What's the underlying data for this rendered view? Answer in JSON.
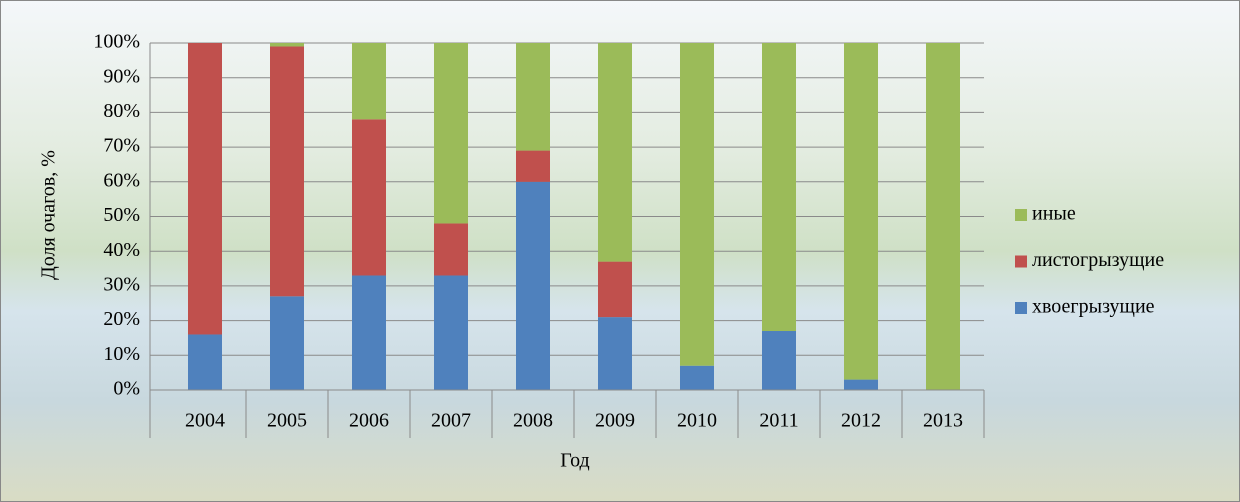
{
  "chart_data": {
    "type": "stacked_bar",
    "categories": [
      "2004",
      "2005",
      "2006",
      "2007",
      "2008",
      "2009",
      "2010",
      "2011",
      "2012",
      "2013"
    ],
    "series": [
      {
        "name": "иные",
        "color": "#9bbb59",
        "values": [
          0,
          1,
          22,
          52,
          31,
          63,
          93,
          83,
          97,
          100
        ]
      },
      {
        "name": "листогрызущие",
        "color": "#c0504d",
        "values": [
          84,
          72,
          45,
          15,
          9,
          16,
          0,
          0,
          0,
          0
        ]
      },
      {
        "name": "хвоегрызущие",
        "color": "#4f81bd",
        "values": [
          16,
          27,
          33,
          33,
          60,
          21,
          7,
          17,
          3,
          0
        ]
      }
    ],
    "ylim": [
      0,
      100
    ],
    "yticks": [
      {
        "value": 0,
        "label": "0%"
      },
      {
        "value": 10,
        "label": "10%"
      },
      {
        "value": 20,
        "label": "20%"
      },
      {
        "value": 30,
        "label": "30%"
      },
      {
        "value": 40,
        "label": "40%"
      },
      {
        "value": 50,
        "label": "50%"
      },
      {
        "value": 60,
        "label": "60%"
      },
      {
        "value": 70,
        "label": "70%"
      },
      {
        "value": 80,
        "label": "80%"
      },
      {
        "value": 90,
        "label": "90%"
      },
      {
        "value": 100,
        "label": "100%"
      }
    ],
    "xlabel": "Год",
    "ylabel": "Доля очагов, %",
    "grid": true,
    "legend": "right"
  }
}
